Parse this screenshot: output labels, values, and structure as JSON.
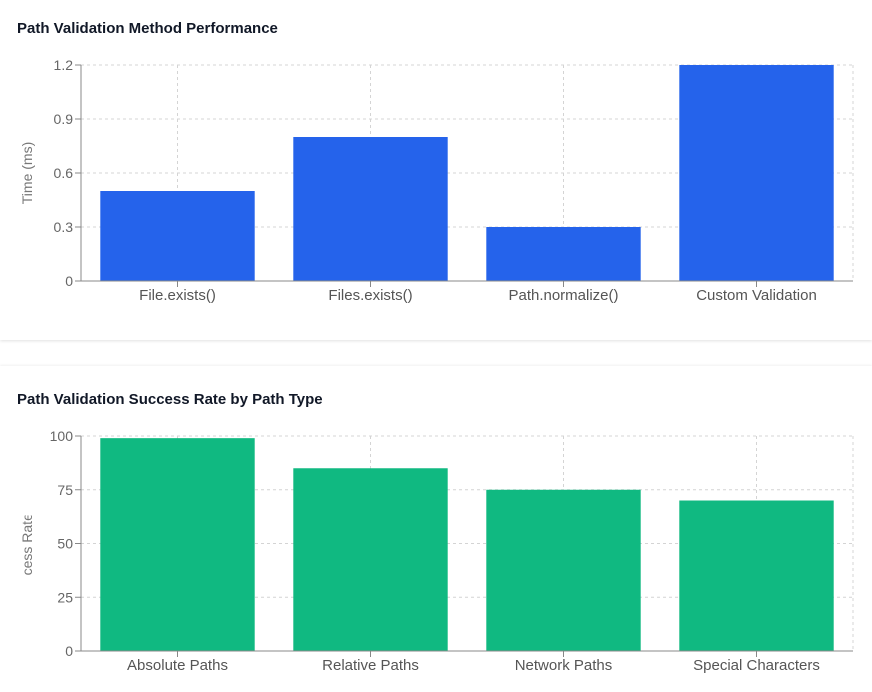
{
  "chart_data": [
    {
      "type": "bar",
      "title": "Path Validation Method Performance",
      "categories": [
        "File.exists()",
        "Files.exists()",
        "Path.normalize()",
        "Custom Validation"
      ],
      "values": [
        0.5,
        0.8,
        0.3,
        1.2
      ],
      "xlabel": "",
      "ylabel": "Time (ms)",
      "ylim": [
        0,
        1.2
      ],
      "yticks": [
        "0",
        "0.3",
        "0.6",
        "0.9",
        "1.2"
      ],
      "ytick_values": [
        0,
        0.3,
        0.6,
        0.9,
        1.2
      ],
      "color": "#2563eb",
      "grid": true
    },
    {
      "type": "bar",
      "title": "Path Validation Success Rate by Path Type",
      "categories": [
        "Absolute Paths",
        "Relative Paths",
        "Network Paths",
        "Special Characters"
      ],
      "values": [
        99,
        85,
        75,
        70
      ],
      "xlabel": "",
      "ylabel": "Success Rate (%)",
      "ylim": [
        0,
        100
      ],
      "yticks": [
        "0",
        "25",
        "50",
        "75",
        "100"
      ],
      "ytick_values": [
        0,
        25,
        50,
        75,
        100
      ],
      "color": "#10b981",
      "grid": true
    }
  ]
}
